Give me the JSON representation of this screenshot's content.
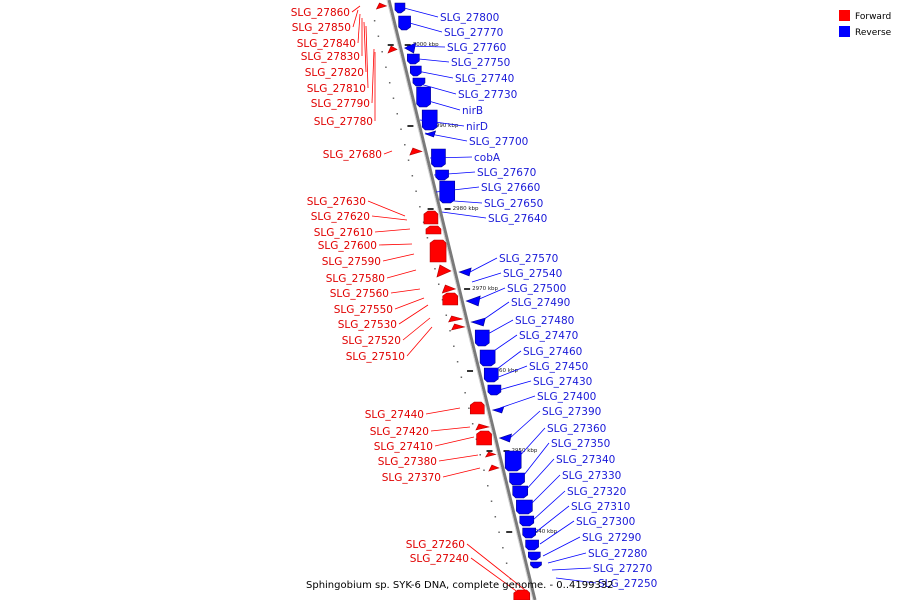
{
  "colors": {
    "forward": "#ff0000",
    "reverse": "#0000ff",
    "backbone": "#7a7a7a"
  },
  "legend": {
    "forward_label": "Forward",
    "reverse_label": "Reverse"
  },
  "caption": "Sphingobium sp. SYK-6 DNA, complete genome. - 0..4199332",
  "ticks": [
    "3000 kbp",
    "2990 kbp",
    "2980 kbp",
    "2970 kbp",
    "2960 kbp",
    "2950 kbp",
    "2940 kbp"
  ],
  "forward_genes": [
    "SLG_27860",
    "SLG_27850",
    "SLG_27840",
    "SLG_27830",
    "SLG_27820",
    "SLG_27810",
    "SLG_27790",
    "SLG_27780",
    "SLG_27680",
    "SLG_27630",
    "SLG_27620",
    "SLG_27610",
    "SLG_27600",
    "SLG_27590",
    "SLG_27580",
    "SLG_27560",
    "SLG_27550",
    "SLG_27530",
    "SLG_27520",
    "SLG_27510",
    "SLG_27440",
    "SLG_27420",
    "SLG_27410",
    "SLG_27380",
    "SLG_27370",
    "SLG_27260",
    "SLG_27240"
  ],
  "reverse_genes": [
    "SLG_27800",
    "SLG_27770",
    "SLG_27760",
    "SLG_27750",
    "SLG_27740",
    "SLG_27730",
    "nirB",
    "nirD",
    "SLG_27700",
    "cobA",
    "SLG_27670",
    "SLG_27660",
    "SLG_27650",
    "SLG_27640",
    "SLG_27570",
    "SLG_27540",
    "SLG_27500",
    "SLG_27490",
    "SLG_27480",
    "SLG_27470",
    "SLG_27460",
    "SLG_27450",
    "SLG_27430",
    "SLG_27400",
    "SLG_27390",
    "SLG_27360",
    "SLG_27350",
    "SLG_27340",
    "SLG_27330",
    "SLG_27320",
    "SLG_27310",
    "SLG_27300",
    "SLG_27290",
    "SLG_27280",
    "SLG_27270",
    "SLG_27250"
  ]
}
